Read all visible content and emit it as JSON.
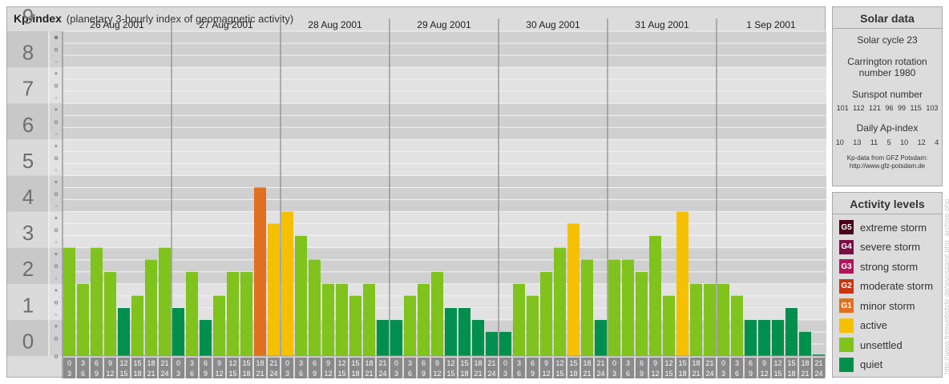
{
  "header": {
    "title": "Kp-index",
    "subtitle": "(planetary 3-hourly index of geomagnetic activity)"
  },
  "solar": {
    "title": "Solar data",
    "cycle": "Solar cycle 23",
    "carrington_line1": "Carrington rotation",
    "carrington_line2": "number 1980",
    "sunspot_label": "Sunspot number",
    "sunspot_values": "101 112 121 96 99 115 103",
    "ap_label": "Daily Ap-index",
    "ap_values": "10 13 11 5 10 12 4",
    "credit_line1": "Kp-data from GFZ Potsdam:",
    "credit_line2": "http://www.gfz-potsdam.de"
  },
  "activity": {
    "title": "Activity levels",
    "levels": [
      {
        "code": "G5",
        "label": "extreme storm",
        "color": "#4a0016"
      },
      {
        "code": "G4",
        "label": "severe storm",
        "color": "#7a0f45"
      },
      {
        "code": "G3",
        "label": "strong storm",
        "color": "#b4155a"
      },
      {
        "code": "G2",
        "label": "moderate storm",
        "color": "#c8350f"
      },
      {
        "code": "G1",
        "label": "minor storm",
        "color": "#e07020"
      },
      {
        "code": "",
        "label": "active",
        "color": "#f5c000"
      },
      {
        "code": "",
        "label": "unsettled",
        "color": "#7fc31c"
      },
      {
        "code": "",
        "label": "quiet",
        "color": "#008f4c"
      }
    ]
  },
  "side_credit": "http://www.freewebstyle.de/ajvoszarol.php_archive.php",
  "chart_data": {
    "type": "bar",
    "title": "Kp-index",
    "subtitle": "(planetary 3-hourly index of geomagnetic activity)",
    "ylim": [
      0,
      9
    ],
    "y_ticks": [
      "0",
      "1",
      "2",
      "3",
      "4",
      "5",
      "6",
      "7",
      "8",
      "9"
    ],
    "sub_ticks": [
      "-",
      "o",
      "+"
    ],
    "days": [
      "26 Aug 2001",
      "27 Aug 2001",
      "28 Aug 2001",
      "29 Aug 2001",
      "30 Aug 2001",
      "31 Aug 2001",
      "1 Sep 2001"
    ],
    "interval_start": [
      "0",
      "3",
      "6",
      "9",
      "12",
      "15",
      "18",
      "21"
    ],
    "interval_end": [
      "3",
      "6",
      "9",
      "12",
      "15",
      "18",
      "21",
      "24"
    ],
    "values": [
      [
        3.0,
        2.0,
        3.0,
        2.33,
        1.33,
        1.67,
        2.67,
        3.0
      ],
      [
        1.33,
        2.33,
        1.0,
        1.67,
        2.33,
        2.33,
        4.67,
        3.67
      ],
      [
        4.0,
        3.33,
        2.67,
        2.0,
        2.0,
        1.67,
        2.0,
        1.0
      ],
      [
        1.0,
        1.67,
        2.0,
        2.33,
        1.33,
        1.33,
        1.0,
        0.67
      ],
      [
        0.67,
        2.0,
        1.67,
        2.33,
        3.0,
        3.67,
        2.67,
        1.0
      ],
      [
        2.67,
        2.67,
        2.33,
        3.33,
        1.67,
        4.0,
        2.0,
        2.0
      ],
      [
        2.0,
        1.67,
        1.0,
        1.0,
        1.0,
        1.33,
        0.67,
        0.0
      ]
    ],
    "colors": {
      "quiet": "#008f4c",
      "unsettled": "#7fc31c",
      "active": "#f5c000",
      "G1": "#e07020",
      "G2": "#c8350f"
    },
    "grid": true
  }
}
